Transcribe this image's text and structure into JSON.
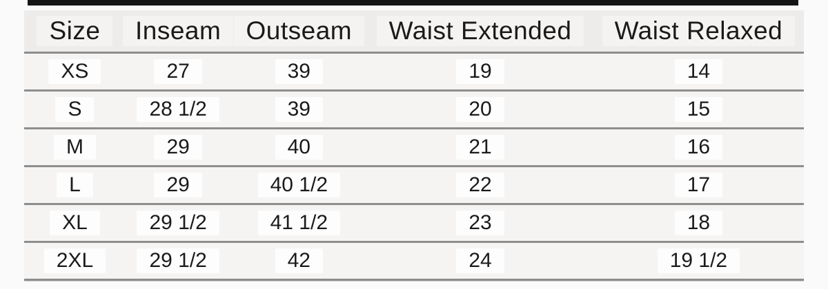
{
  "table": {
    "columns": [
      "Size",
      "Inseam",
      "Outseam",
      "Waist Extended",
      "Waist Relaxed"
    ],
    "rows": [
      {
        "size": "XS",
        "inseam": "27",
        "outseam": "39",
        "waist_extended": "19",
        "waist_relaxed": "14"
      },
      {
        "size": "S",
        "inseam": "28 1/2",
        "outseam": "39",
        "waist_extended": "20",
        "waist_relaxed": "15"
      },
      {
        "size": "M",
        "inseam": "29",
        "outseam": "40",
        "waist_extended": "21",
        "waist_relaxed": "16"
      },
      {
        "size": "L",
        "inseam": "29",
        "outseam": "40 1/2",
        "waist_extended": "22",
        "waist_relaxed": "17"
      },
      {
        "size": "XL",
        "inseam": "29 1/2",
        "outseam": "41 1/2",
        "waist_extended": "23",
        "waist_relaxed": "18"
      },
      {
        "size": "2XL",
        "inseam": "29 1/2",
        "outseam": "42",
        "waist_extended": "24",
        "waist_relaxed": "19 1/2"
      }
    ]
  },
  "colors": {
    "top_bar": "#151515",
    "header_background": "#edecea",
    "row_background": "#f5f4f3",
    "cell_highlight": "#fdfdfd",
    "rule": "#8d8d8d",
    "text": "#1a1a1a",
    "page_background": "#fafafa"
  }
}
